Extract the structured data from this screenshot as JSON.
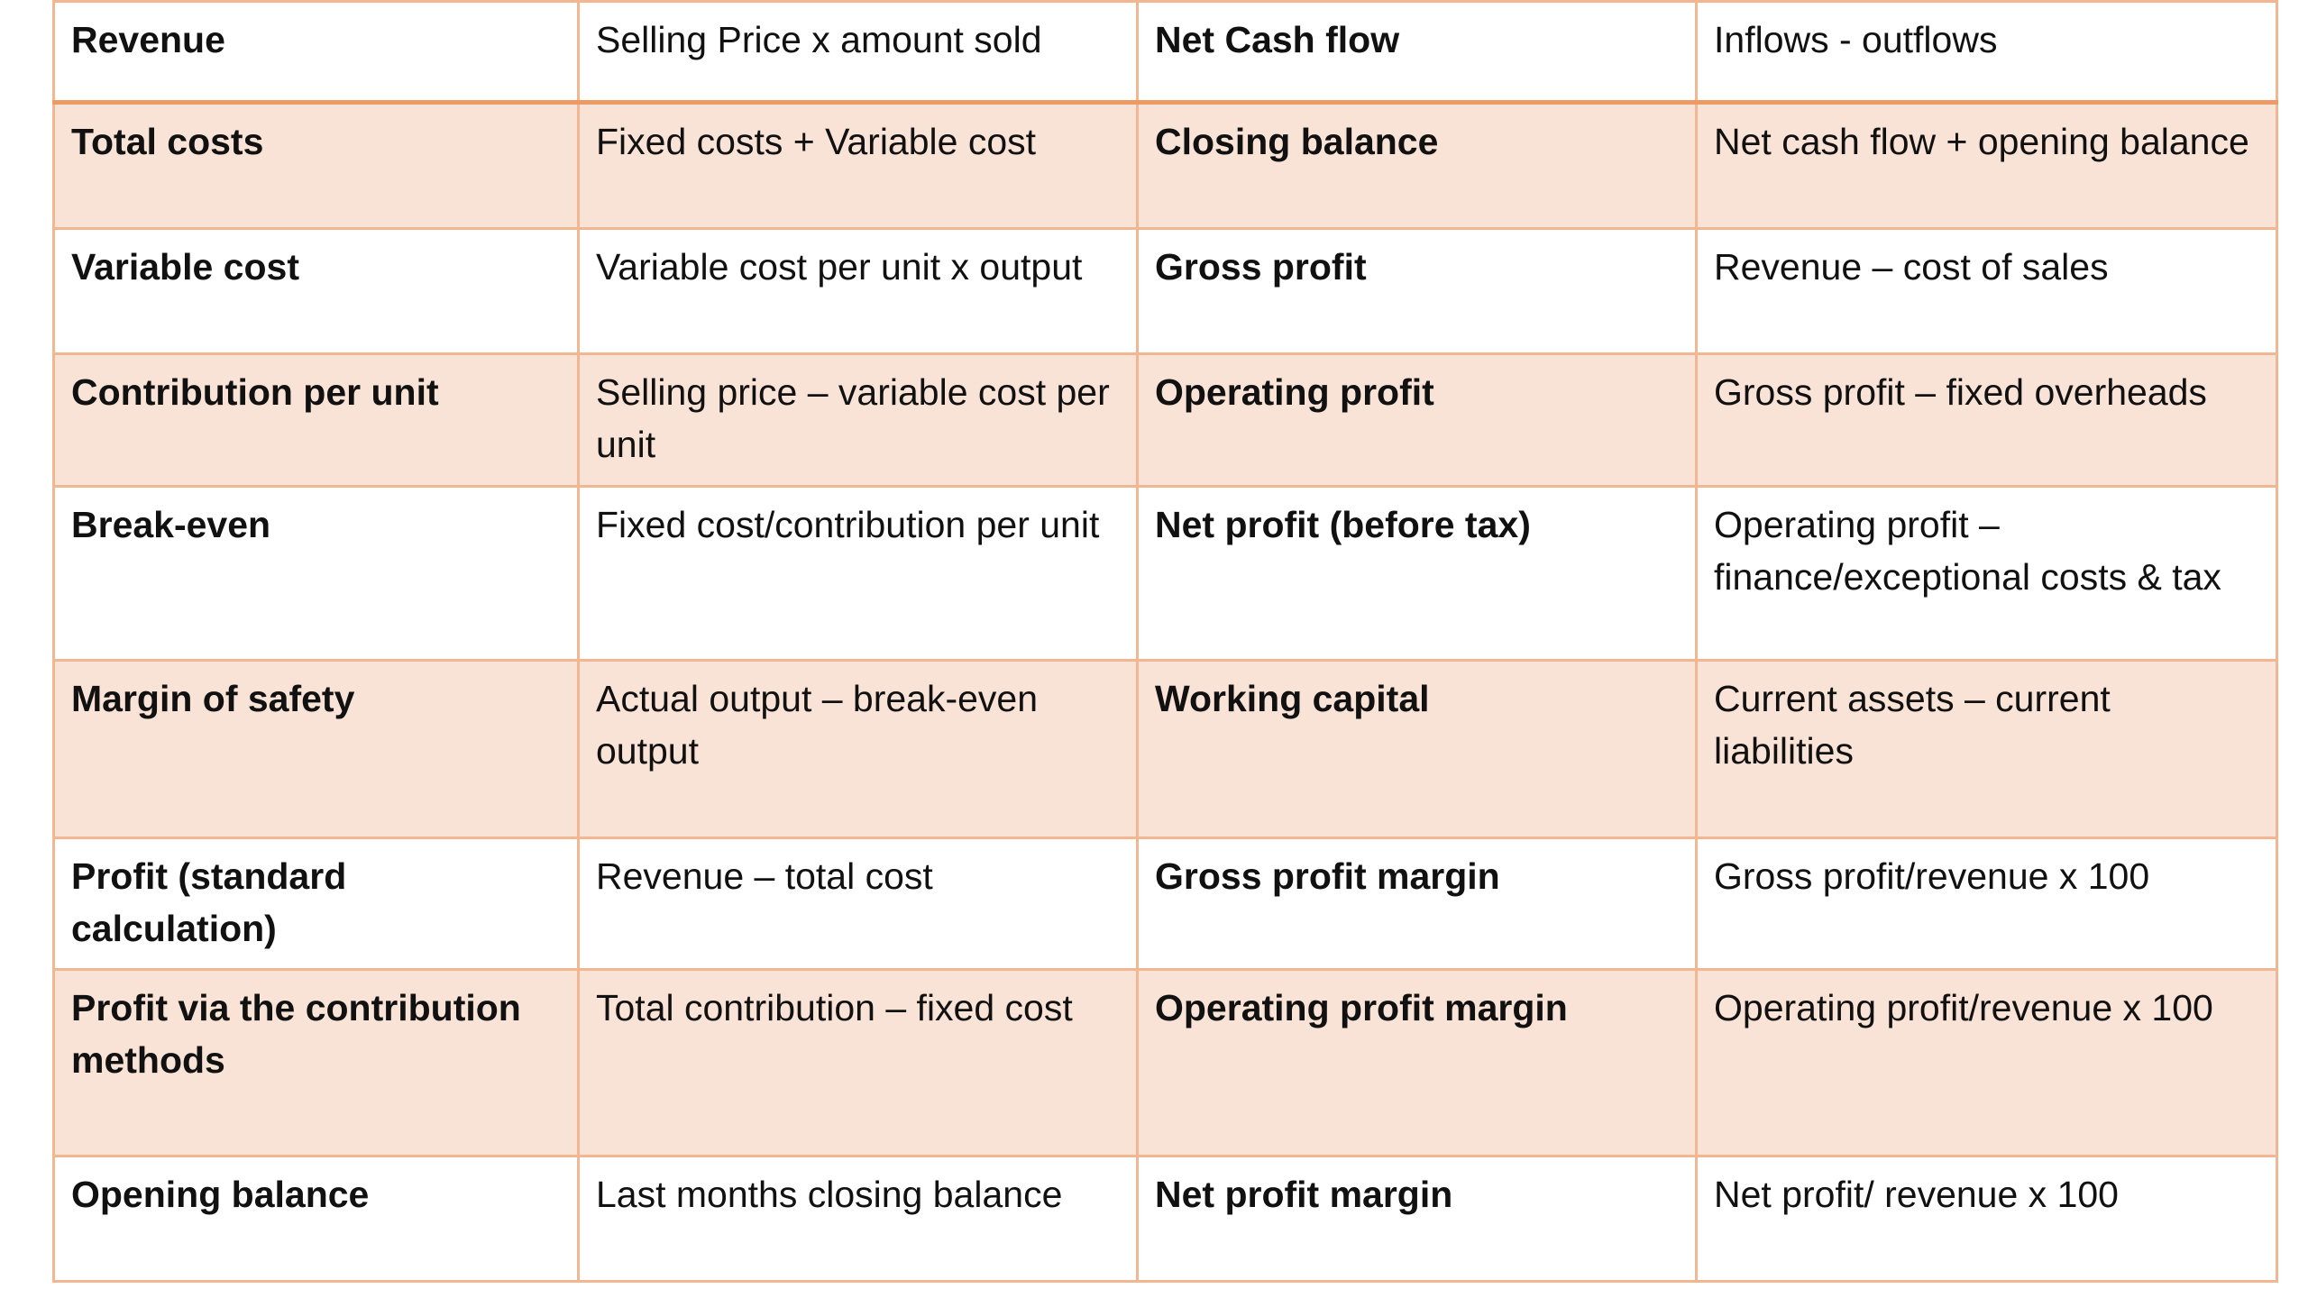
{
  "rows": [
    {
      "term1": "Revenue",
      "formula1": "Selling Price x amount sold",
      "term2": "Net Cash flow",
      "formula2": "Inflows - outflows"
    },
    {
      "term1": "Total costs",
      "formula1": "Fixed costs + Variable cost",
      "term2": "Closing balance",
      "formula2": "Net cash flow + opening balance"
    },
    {
      "term1": "Variable cost",
      "formula1": "Variable cost per unit x output",
      "term2": "Gross profit",
      "formula2": "Revenue – cost of sales"
    },
    {
      "term1": "Contribution per unit",
      "formula1": "Selling price – variable cost per unit",
      "term2": "Operating profit",
      "formula2": "Gross profit – fixed overheads"
    },
    {
      "term1": "Break-even",
      "formula1": "Fixed cost/contribution per unit",
      "term2": "Net profit (before tax)",
      "formula2": "Operating profit – finance/exceptional costs & tax"
    },
    {
      "term1": "Margin of safety",
      "formula1": "Actual output – break-even output",
      "term2": "Working capital",
      "formula2": "Current assets – current liabilities"
    },
    {
      "term1": "Profit (standard calculation)",
      "formula1": "Revenue – total cost",
      "term2": "Gross profit margin",
      "formula2": "Gross profit/revenue x 100"
    },
    {
      "term1": "Profit via the contribution methods",
      "formula1": "Total contribution – fixed cost",
      "term2": "Operating profit margin",
      "formula2": "Operating profit/revenue x 100"
    },
    {
      "term1": "Opening balance",
      "formula1": "Last months closing balance",
      "term2": "Net profit margin",
      "formula2": "Net profit/ revenue x 100"
    }
  ]
}
